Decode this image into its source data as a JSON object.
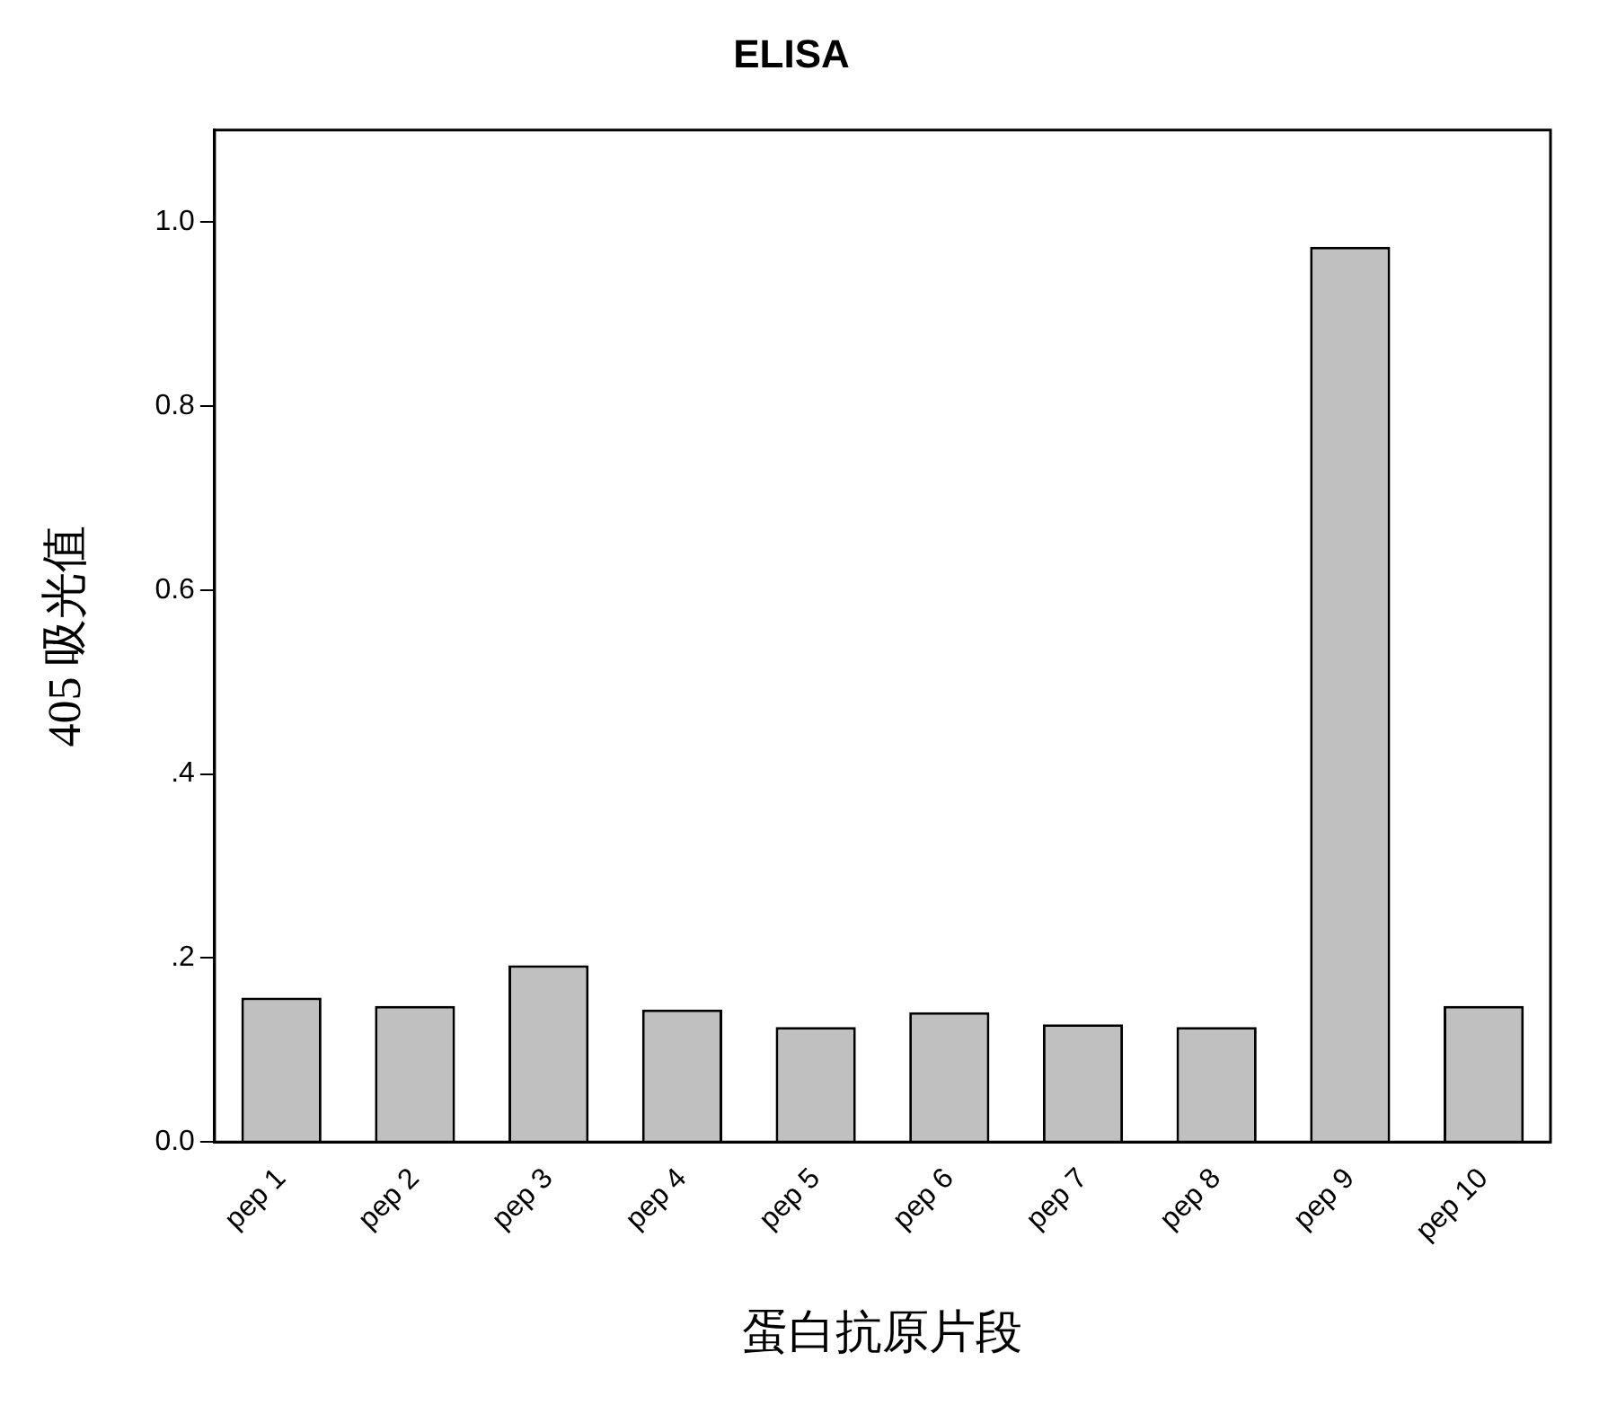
{
  "chart_data": {
    "type": "bar",
    "title": "ELISA",
    "xlabel": "蛋白抗原片段",
    "ylabel": "405 吸光值",
    "categories": [
      "pep 1",
      "pep 2",
      "pep 3",
      "pep 4",
      "pep 5",
      "pep 6",
      "pep 7",
      "pep 8",
      "pep 9",
      "pep 10"
    ],
    "values": [
      0.157,
      0.148,
      0.192,
      0.144,
      0.125,
      0.141,
      0.128,
      0.125,
      0.973,
      0.148
    ],
    "color": "#c0c0c0",
    "ylim": [
      0,
      1.1
    ],
    "yticks": [
      {
        "value": 0,
        "label": "0.0"
      },
      {
        "value": 0.2,
        "label": ".2"
      },
      {
        "value": 0.4,
        "label": ".4"
      },
      {
        "value": 0.6,
        "label": "0.6"
      },
      {
        "value": 0.8,
        "label": "0.8"
      },
      {
        "value": 1,
        "label": "1.0"
      }
    ],
    "grid": false,
    "legend": false
  }
}
